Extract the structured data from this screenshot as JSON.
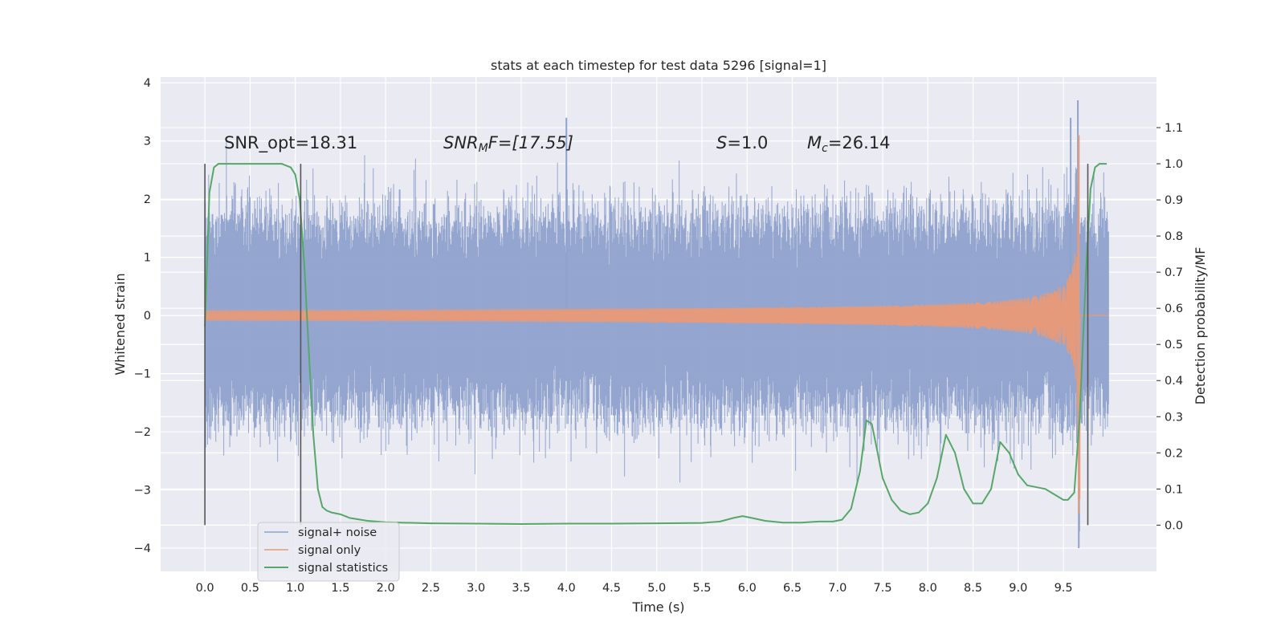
{
  "chart_data": {
    "type": "line",
    "title": "stats at each timestep for test data 5296 [signal=1]",
    "xlabel": "Time (s)",
    "ylabel": "Whitened strain",
    "y2label": "Detection probability/MF",
    "xlim": [
      -0.49,
      10.53
    ],
    "ylim": [
      -4.4,
      4.1
    ],
    "y2lim": [
      -0.128,
      1.24
    ],
    "xticks": [
      "0.0",
      "0.5",
      "1.0",
      "1.5",
      "2.0",
      "2.5",
      "3.0",
      "3.5",
      "4.0",
      "4.5",
      "5.0",
      "5.5",
      "6.0",
      "6.5",
      "7.0",
      "7.5",
      "8.0",
      "8.5",
      "9.0",
      "9.5"
    ],
    "yticks": [
      "−4",
      "−3",
      "−2",
      "−1",
      "0",
      "1",
      "2",
      "3",
      "4"
    ],
    "y2ticks": [
      "0.0",
      "0.1",
      "0.2",
      "0.3",
      "0.4",
      "0.5",
      "0.6",
      "0.7",
      "0.8",
      "0.9",
      "1.0",
      "1.1"
    ],
    "grid": true,
    "legend_position": "lower-left",
    "vlines": [
      0.0,
      1.06,
      9.77
    ],
    "annotations": {
      "snr_opt": "SNR_opt=18.31",
      "snr_mf_label": "SNR",
      "snr_mf_sub": "M",
      "snr_mf_rest": "F=[17.55]",
      "s_label": "S",
      "s_value": "=1.0",
      "mc_label": "M",
      "mc_sub": "c",
      "mc_value": "=26.14"
    },
    "series": [
      {
        "name": "signal+ noise",
        "color": "#8fa2cc",
        "kind": "noise",
        "x_range": [
          0.0,
          10.0
        ],
        "typical_envelope": [
          -1.6,
          1.6
        ],
        "notable_peaks": [
          [
            4.0,
            3.4
          ],
          [
            9.66,
            3.7
          ],
          [
            9.58,
            3.4
          ],
          [
            9.67,
            -4.0
          ]
        ]
      },
      {
        "name": "signal only",
        "color": "#e59a7b",
        "kind": "chirp",
        "x_range": [
          0.0,
          10.0
        ],
        "merger_time": 9.67,
        "peak_positive": 3.1,
        "peak_negative": -3.4
      },
      {
        "name": "signal statistics",
        "color": "#55a868",
        "axis": "right",
        "x": [
          0.0,
          0.05,
          0.1,
          0.15,
          0.2,
          0.3,
          0.5,
          0.7,
          0.85,
          0.95,
          1.0,
          1.05,
          1.1,
          1.15,
          1.2,
          1.25,
          1.3,
          1.35,
          1.4,
          1.5,
          1.6,
          1.8,
          2.0,
          2.5,
          3.0,
          3.5,
          4.0,
          4.5,
          5.0,
          5.5,
          5.7,
          5.85,
          5.95,
          6.05,
          6.2,
          6.4,
          6.6,
          6.8,
          6.95,
          7.05,
          7.15,
          7.25,
          7.32,
          7.38,
          7.5,
          7.6,
          7.7,
          7.8,
          7.9,
          8.0,
          8.1,
          8.2,
          8.3,
          8.4,
          8.5,
          8.6,
          8.7,
          8.8,
          8.9,
          9.0,
          9.1,
          9.2,
          9.3,
          9.4,
          9.5,
          9.55,
          9.62,
          9.68,
          9.75,
          9.8,
          9.85,
          9.9,
          9.98
        ],
        "y": [
          0.55,
          0.92,
          0.99,
          1.0,
          1.0,
          1.0,
          1.0,
          1.0,
          1.0,
          0.99,
          0.97,
          0.9,
          0.72,
          0.48,
          0.25,
          0.1,
          0.05,
          0.04,
          0.035,
          0.03,
          0.02,
          0.012,
          0.008,
          0.005,
          0.004,
          0.003,
          0.004,
          0.004,
          0.005,
          0.006,
          0.01,
          0.02,
          0.025,
          0.02,
          0.012,
          0.007,
          0.007,
          0.01,
          0.01,
          0.015,
          0.045,
          0.15,
          0.29,
          0.28,
          0.13,
          0.07,
          0.04,
          0.03,
          0.035,
          0.06,
          0.13,
          0.25,
          0.2,
          0.1,
          0.06,
          0.06,
          0.1,
          0.23,
          0.2,
          0.14,
          0.11,
          0.105,
          0.1,
          0.085,
          0.07,
          0.07,
          0.09,
          0.3,
          0.7,
          0.93,
          0.99,
          1.0,
          1.0
        ]
      }
    ]
  }
}
